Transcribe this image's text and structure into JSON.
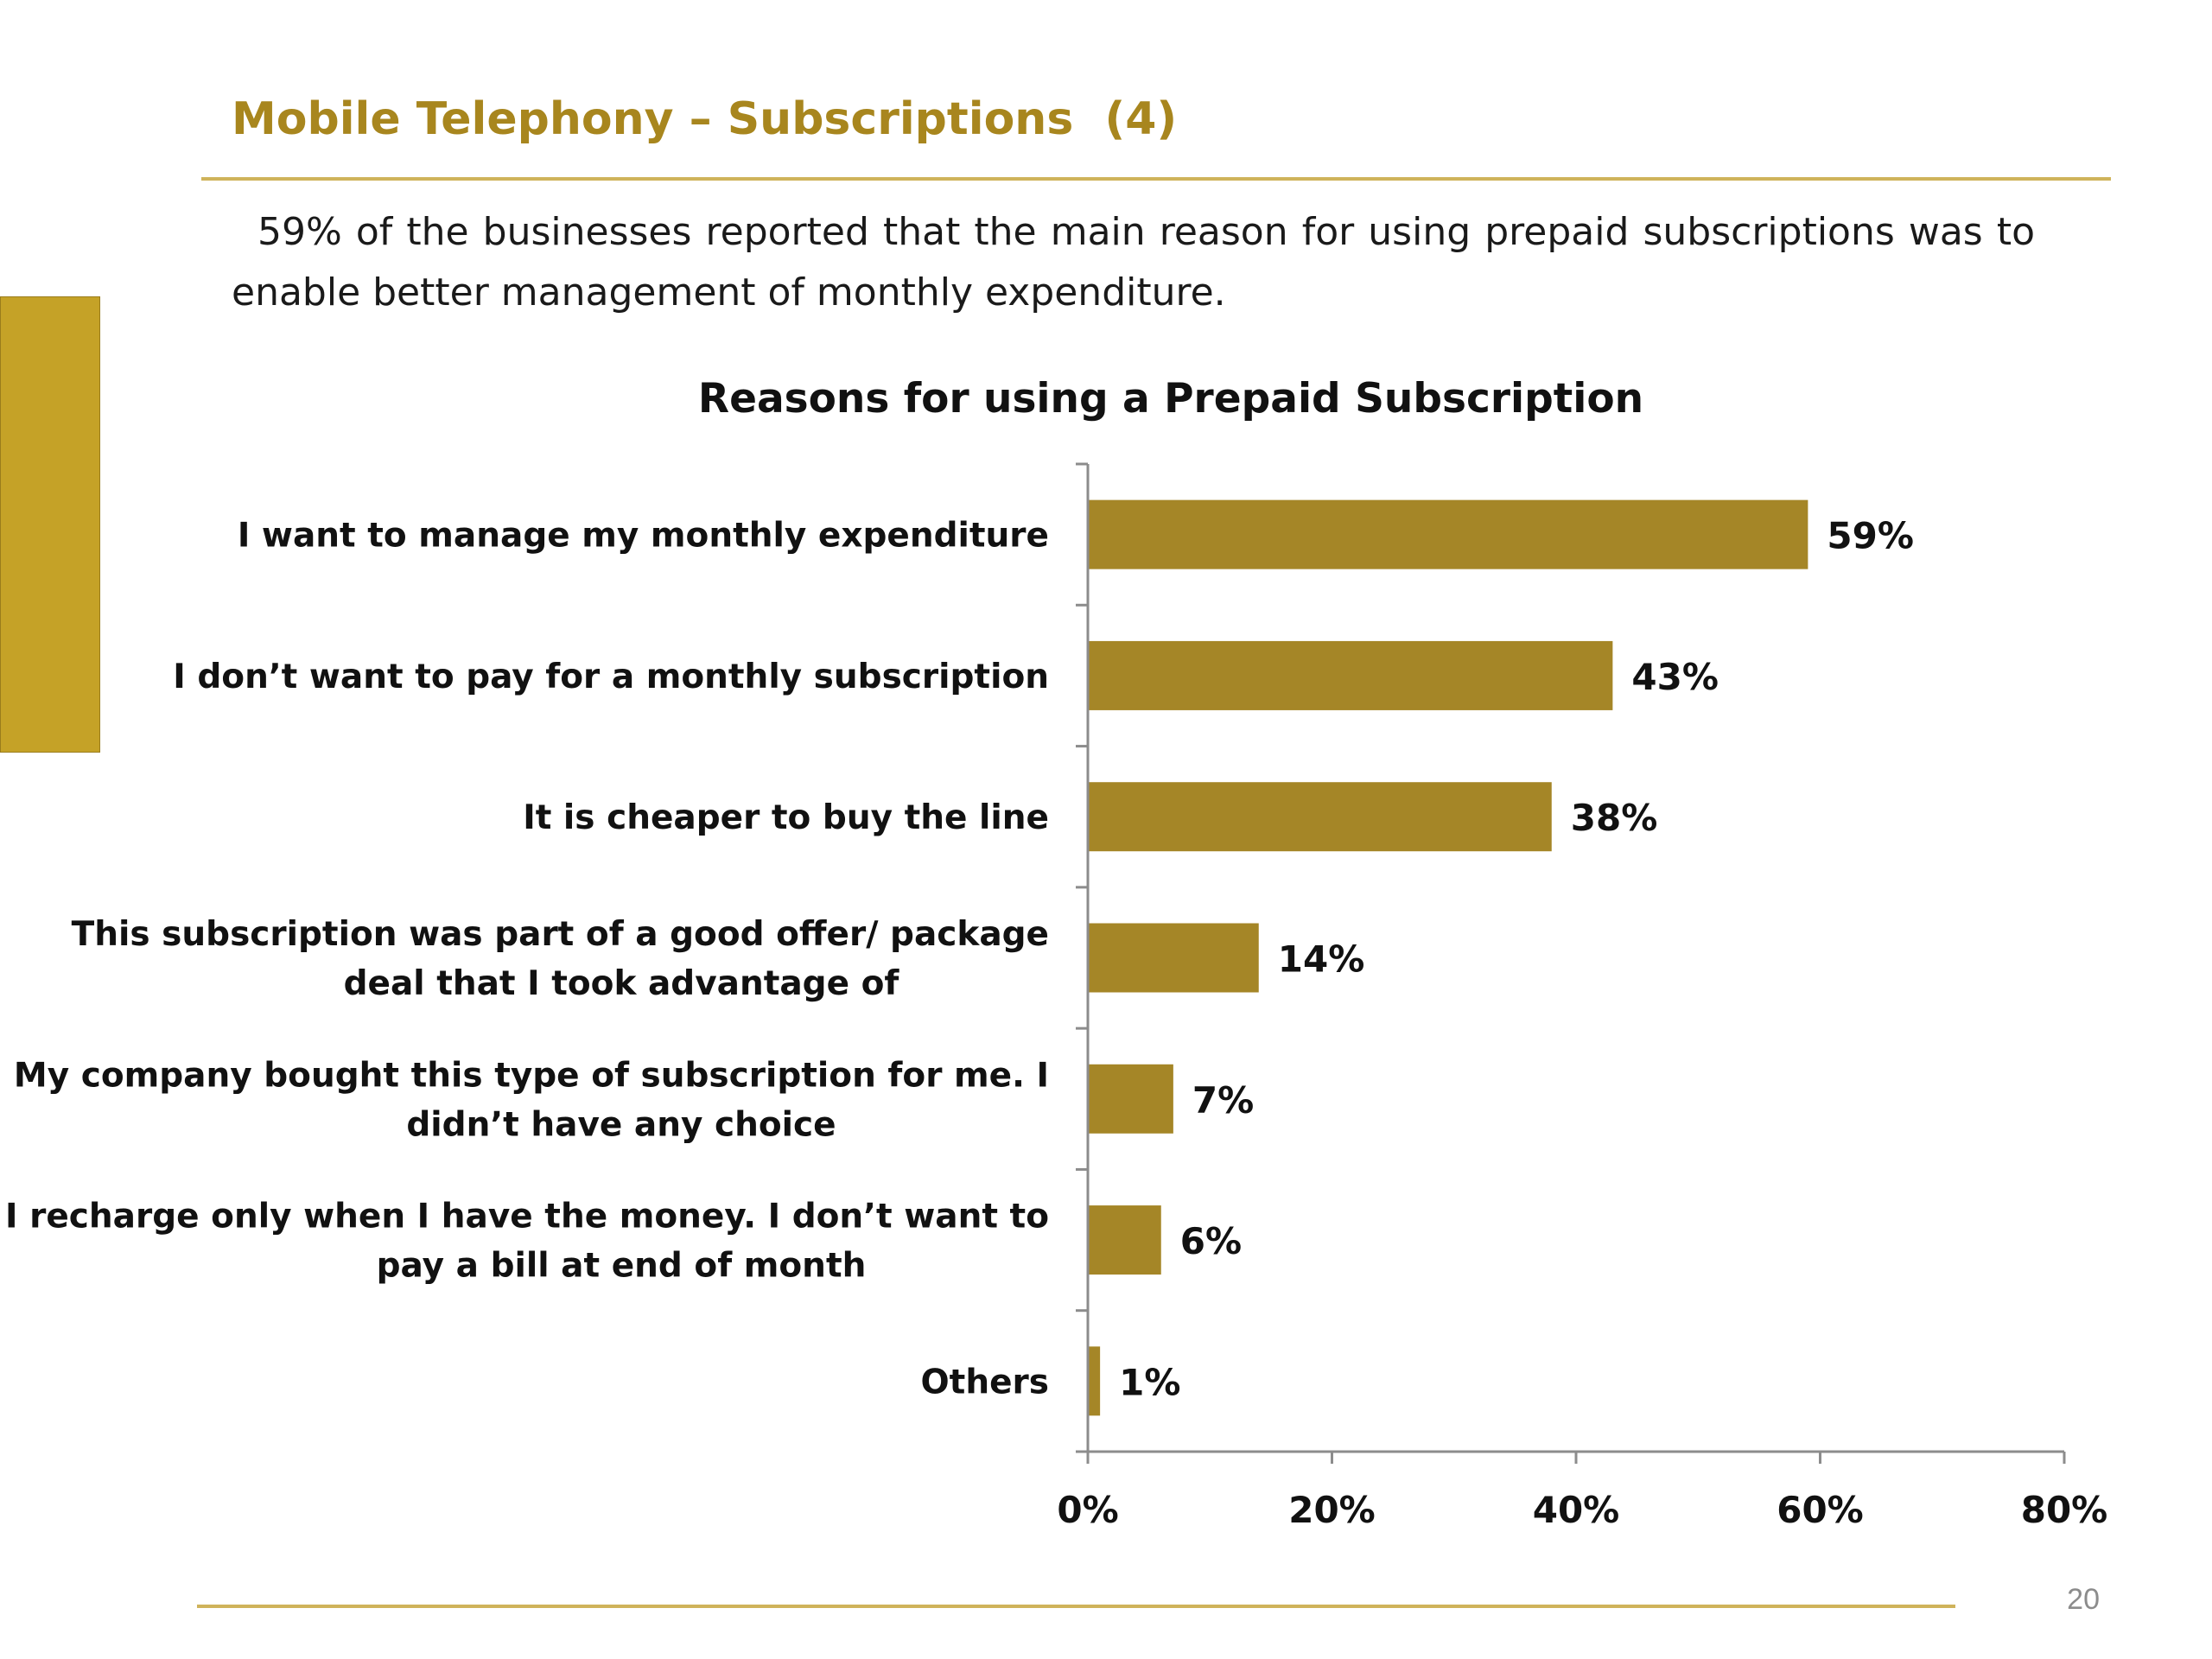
{
  "slide": {
    "title": "Mobile Telephony – Subscriptions  (4)",
    "subtitle": "59% of the businesses reported that the main reason for using prepaid subscriptions was to enable better management of monthly expenditure.",
    "page_number": "20"
  },
  "colors": {
    "accent": "#c5a227",
    "title": "#a8861e",
    "rule": "#cfb35a",
    "bar": "#a58627",
    "axis": "#8c8c8c"
  },
  "chart_data": {
    "type": "bar",
    "orientation": "horizontal",
    "title": "Reasons for using a Prepaid Subscription",
    "categories": [
      [
        "I want to manage my monthly expenditure"
      ],
      [
        "I don’t want to pay for a monthly subscription"
      ],
      [
        "It is cheaper to buy the line"
      ],
      [
        "This subscription was part of a good offer/ package",
        "deal that I took advantage of"
      ],
      [
        "My company bought this type of subscription for me. I",
        "didn’t have any choice"
      ],
      [
        "I recharge only when I have the money. I don’t want to",
        "pay a bill at  end of month"
      ],
      [
        "Others"
      ]
    ],
    "values": [
      59,
      43,
      38,
      14,
      7,
      6,
      1
    ],
    "data_labels": [
      "59%",
      "43%",
      "38%",
      "14%",
      "7%",
      "6%",
      "1%"
    ],
    "xlim": [
      0,
      80
    ],
    "xticks": [
      0,
      20,
      40,
      60,
      80
    ],
    "xtick_labels": [
      "0%",
      "20%",
      "40%",
      "60%",
      "80%"
    ],
    "grid": false,
    "legend": "none"
  }
}
